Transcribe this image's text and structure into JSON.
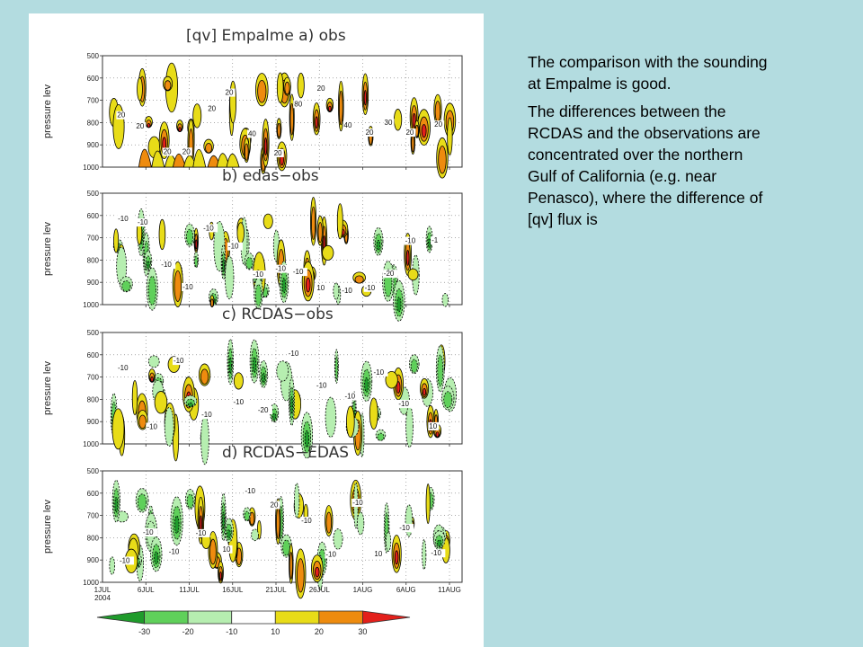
{
  "text_panel": {
    "paragraph_1": "The comparison with the sounding at Empalme is good.",
    "paragraph_2": "The differences between the RCDAS and the observations are concentrated over the northern Gulf of California (e.g. near Penasco), where the difference of [qv] flux is"
  },
  "chart_data": {
    "type": "contour",
    "ylabel": "pressure lev",
    "y_ticks": [
      "500",
      "600",
      "700",
      "800",
      "900",
      "1000"
    ],
    "x_tick_labels": [
      "1JUL",
      "6JUL",
      "11JUL",
      "16JUL",
      "21JUL",
      "26JUL",
      "1AUG",
      "6AUG",
      "11AUG"
    ],
    "x_year_label": "2004",
    "colorbar_levels": [
      "-30",
      "-20",
      "-10",
      "10",
      "20",
      "30"
    ],
    "colorbar_colors": [
      "#1f9b2b",
      "#5fd05a",
      "#b6eeb0",
      "#ffffff",
      "#e8dc18",
      "#ee8b0e",
      "#e3201b"
    ],
    "panels": [
      {
        "title": "[qv] Empalme a) obs",
        "contour_labels": [
          "20",
          "20",
          "20",
          "20",
          "20",
          "20",
          "40",
          "20",
          "80",
          "20",
          "40",
          "20",
          "30",
          "20",
          "20"
        ]
      },
      {
        "title": "b) edas−obs",
        "contour_labels": [
          "-10",
          "-10",
          "-10",
          "-10",
          "-10",
          "-10",
          "-10",
          "-10",
          "-10",
          "10",
          "-10",
          "-10",
          "-20",
          "-10",
          "-1"
        ]
      },
      {
        "title": "c) RCDAS−obs",
        "contour_labels": [
          "-10",
          "-10",
          "-10",
          "-10",
          "-10",
          "-20",
          "-10",
          "-10",
          "-10",
          "-10",
          "-10",
          "10"
        ]
      },
      {
        "title": "d) RCDAS−EDAS",
        "contour_labels": [
          "-10",
          "-10",
          "-10",
          "-10",
          "10",
          "-10",
          "20",
          "-10",
          "-10",
          "-10",
          "10",
          "-10",
          "-10"
        ]
      }
    ]
  }
}
